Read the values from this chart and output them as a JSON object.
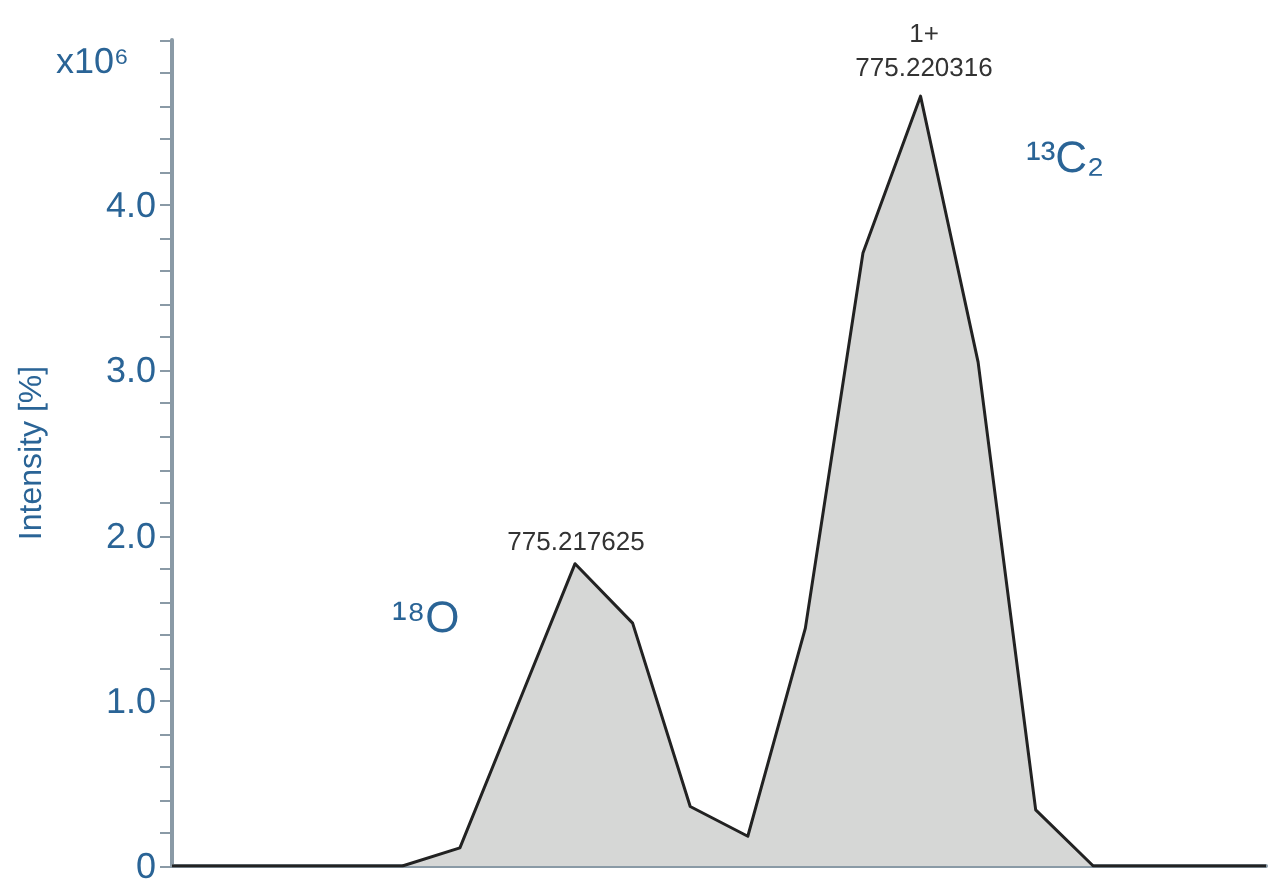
{
  "chart_data": {
    "type": "area",
    "ylabel": "Intensity [%]",
    "categories": [
      null,
      null,
      null,
      null,
      null,
      null,
      null,
      null,
      null,
      null,
      null,
      null,
      null,
      null,
      null,
      null,
      null,
      null,
      null,
      null
    ],
    "values": [
      0,
      0,
      0,
      0,
      0,
      0.11,
      0.97,
      1.83,
      1.47,
      0.36,
      0.18,
      1.44,
      3.71,
      4.66,
      3.05,
      0.34,
      0,
      0,
      0,
      0
    ],
    "color": "#d6d7d6",
    "ylim": [
      0,
      5
    ],
    "yticks": [
      0,
      {
        "value": 1,
        "label": "1.0"
      },
      {
        "value": 2,
        "label": "2.0"
      },
      {
        "value": 3,
        "label": "3.0"
      },
      {
        "value": 4,
        "label": "4.0"
      },
      {
        "value": 5,
        "label": null
      }
    ],
    "annotations": [
      "x10⁶",
      "775.217625",
      "1+\n775.220316",
      "¹⁸O",
      "¹³C₂"
    ],
    "grid": false,
    "marker": "none",
    "tick_labels": "y"
  }
}
